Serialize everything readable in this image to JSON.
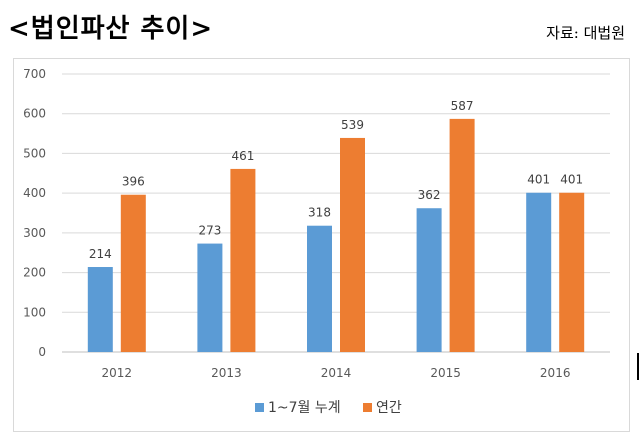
{
  "header": {
    "title": "<법인파산 추이>",
    "source": "자료: 대법원"
  },
  "chart_data": {
    "type": "bar",
    "categories": [
      "2012",
      "2013",
      "2014",
      "2015",
      "2016"
    ],
    "series": [
      {
        "name": "1~7월 누계",
        "values": [
          214,
          273,
          318,
          362,
          401
        ],
        "color": "#5b9bd5"
      },
      {
        "name": "연간",
        "values": [
          396,
          461,
          539,
          587,
          401
        ],
        "color": "#ed7d31"
      }
    ],
    "yticks": [
      0,
      100,
      200,
      300,
      400,
      500,
      600,
      700
    ],
    "ylim": [
      0,
      700
    ],
    "grid": true,
    "legend": "bottom",
    "data_labels": true
  }
}
